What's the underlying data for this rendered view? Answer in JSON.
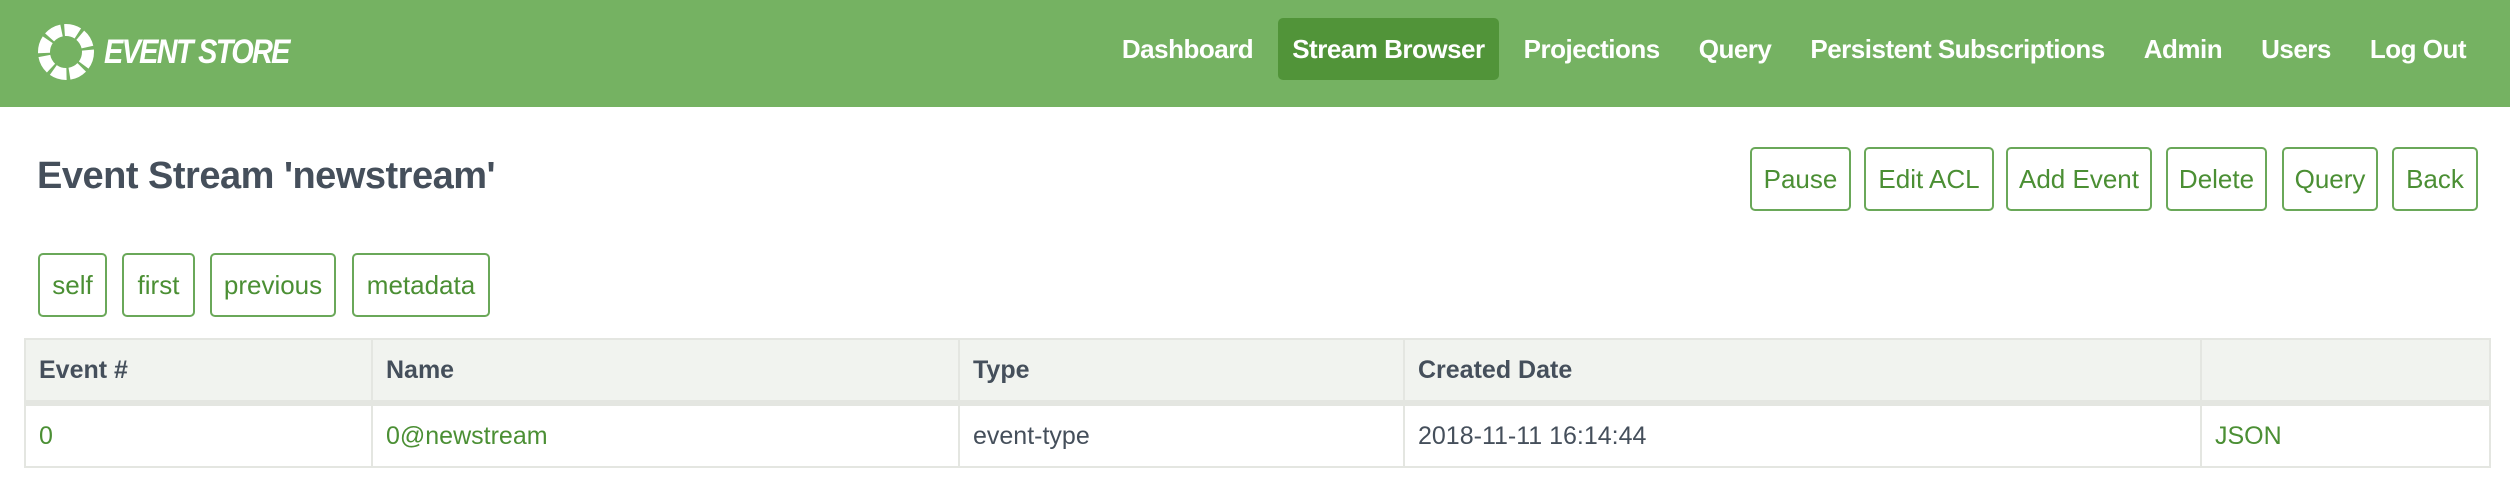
{
  "brand": {
    "logo_text": "EVENT STORE",
    "accent": "#75b262",
    "active": "#519439",
    "link": "#4b8f34"
  },
  "nav": {
    "items": [
      {
        "label": "Dashboard",
        "active": false
      },
      {
        "label": "Stream Browser",
        "active": true
      },
      {
        "label": "Projections",
        "active": false
      },
      {
        "label": "Query",
        "active": false
      },
      {
        "label": "Persistent Subscriptions",
        "active": false
      },
      {
        "label": "Admin",
        "active": false
      },
      {
        "label": "Users",
        "active": false
      },
      {
        "label": "Log Out",
        "active": false
      }
    ]
  },
  "page": {
    "title": "Event Stream 'newstream'"
  },
  "actions": {
    "pause": "Pause",
    "edit_acl": "Edit ACL",
    "add_event": "Add Event",
    "delete": "Delete",
    "query": "Query",
    "back": "Back"
  },
  "links": {
    "self": "self",
    "first": "first",
    "previous": "previous",
    "metadata": "metadata"
  },
  "table": {
    "headers": [
      "Event #",
      "Name",
      "Type",
      "Created Date",
      ""
    ],
    "rows": [
      {
        "number": "0",
        "name": "0@newstream",
        "type": "event-type",
        "created": "2018-11-11 16:14:44",
        "json": "JSON"
      }
    ]
  }
}
